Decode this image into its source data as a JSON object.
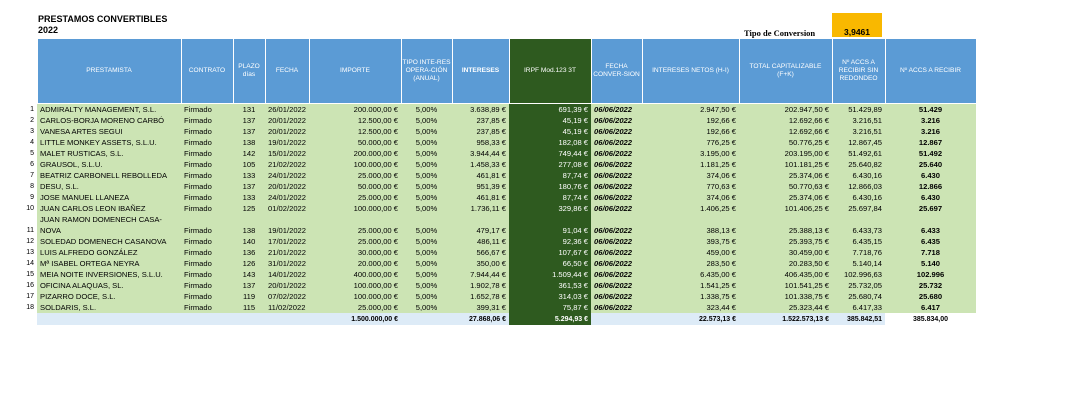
{
  "title": "PRESTAMOS CONVERTIBLES",
  "year": "2022",
  "conversion": {
    "label": "Tipo de Conversion",
    "value": "3,9461"
  },
  "headers": {
    "prestamista": "PRESTAMISTA",
    "contrato": "CONTRATO",
    "plazo": "PLAZO días",
    "fecha": "FECHA",
    "importe": "IMPORTE",
    "tipo": "TIPO INTE-RES OPERA-CIÓN (ANUAL)",
    "intereses": "INTERESES",
    "irpf": "IRPF Mod.123 3T",
    "fecha_conv": "FECHA CONVER-SION",
    "netos": "INTERESES NETOS   (H-I)",
    "total_cap": "TOTAL CAPITALIZABLE (F+K)",
    "acc_sin": "Nº ACCS A RECIBIR SIN REDONDEO",
    "acc": "Nº ACCS A RECIBIR"
  },
  "rows": [
    {
      "n": "1",
      "name": "ADMIRALTY MANAGEMENT, S.L.",
      "contrato": "Firmado",
      "plazo": "131",
      "fecha": "26/01/2022",
      "importe": "200.000,00 €",
      "tipo": "5,00%",
      "intereses": "3.638,89 €",
      "irpf": "691,39 €",
      "fecha_conv": "06/06/2022",
      "netos": "2.947,50 €",
      "total": "202.947,50 €",
      "acc_sin": "51.429,89",
      "acc": "51.429"
    },
    {
      "n": "2",
      "name": "CARLOS-BORJA MORENO CARBÓ",
      "contrato": "Firmado",
      "plazo": "137",
      "fecha": "20/01/2022",
      "importe": "12.500,00 €",
      "tipo": "5,00%",
      "intereses": "237,85 €",
      "irpf": "45,19 €",
      "fecha_conv": "06/06/2022",
      "netos": "192,66 €",
      "total": "12.692,66 €",
      "acc_sin": "3.216,51",
      "acc": "3.216"
    },
    {
      "n": "3",
      "name": "VANESA ARTES SEGUI",
      "contrato": "Firmado",
      "plazo": "137",
      "fecha": "20/01/2022",
      "importe": "12.500,00 €",
      "tipo": "5,00%",
      "intereses": "237,85 €",
      "irpf": "45,19 €",
      "fecha_conv": "06/06/2022",
      "netos": "192,66 €",
      "total": "12.692,66 €",
      "acc_sin": "3.216,51",
      "acc": "3.216"
    },
    {
      "n": "4",
      "name": "LITTLE MONKEY ASSETS, S.L.U.",
      "contrato": "Firmado",
      "plazo": "138",
      "fecha": "19/01/2022",
      "importe": "50.000,00 €",
      "tipo": "5,00%",
      "intereses": "958,33 €",
      "irpf": "182,08 €",
      "fecha_conv": "06/06/2022",
      "netos": "776,25 €",
      "total": "50.776,25 €",
      "acc_sin": "12.867,45",
      "acc": "12.867"
    },
    {
      "n": "5",
      "name": "MALET RUSTICAS, S.L.",
      "contrato": "Firmado",
      "plazo": "142",
      "fecha": "15/01/2022",
      "importe": "200.000,00 €",
      "tipo": "5,00%",
      "intereses": "3.944,44 €",
      "irpf": "749,44 €",
      "fecha_conv": "06/06/2022",
      "netos": "3.195,00 €",
      "total": "203.195,00 €",
      "acc_sin": "51.492,61",
      "acc": "51.492"
    },
    {
      "n": "6",
      "name": "GRAUSOL, S.L.U.",
      "contrato": "Firmado",
      "plazo": "105",
      "fecha": "21/02/2022",
      "importe": "100.000,00 €",
      "tipo": "5,00%",
      "intereses": "1.458,33 €",
      "irpf": "277,08 €",
      "fecha_conv": "06/06/2022",
      "netos": "1.181,25 €",
      "total": "101.181,25 €",
      "acc_sin": "25.640,82",
      "acc": "25.640"
    },
    {
      "n": "7",
      "name": "BEATRIZ CARBONELL REBOLLEDA",
      "contrato": "Firmado",
      "plazo": "133",
      "fecha": "24/01/2022",
      "importe": "25.000,00 €",
      "tipo": "5,00%",
      "intereses": "461,81 €",
      "irpf": "87,74 €",
      "fecha_conv": "06/06/2022",
      "netos": "374,06 €",
      "total": "25.374,06 €",
      "acc_sin": "6.430,16",
      "acc": "6.430"
    },
    {
      "n": "8",
      "name": "DESU, S.L.",
      "contrato": "Firmado",
      "plazo": "137",
      "fecha": "20/01/2022",
      "importe": "50.000,00 €",
      "tipo": "5,00%",
      "intereses": "951,39 €",
      "irpf": "180,76 €",
      "fecha_conv": "06/06/2022",
      "netos": "770,63 €",
      "total": "50.770,63 €",
      "acc_sin": "12.866,03",
      "acc": "12.866"
    },
    {
      "n": "9",
      "name": "JOSE MANUEL LLANEZA",
      "contrato": "Firmado",
      "plazo": "133",
      "fecha": "24/01/2022",
      "importe": "25.000,00 €",
      "tipo": "5,00%",
      "intereses": "461,81 €",
      "irpf": "87,74 €",
      "fecha_conv": "06/06/2022",
      "netos": "374,06 €",
      "total": "25.374,06 €",
      "acc_sin": "6.430,16",
      "acc": "6.430"
    },
    {
      "n": "10",
      "name": "JUAN CARLOS LEON IBAÑEZ",
      "contrato": "Firmado",
      "plazo": "125",
      "fecha": "01/02/2022",
      "importe": "100.000,00 €",
      "tipo": "5,00%",
      "intereses": "1.736,11 €",
      "irpf": "329,86 €",
      "fecha_conv": "06/06/2022",
      "netos": "1.406,25 €",
      "total": "101.406,25 €",
      "acc_sin": "25.697,84",
      "acc": "25.697"
    },
    {
      "n": "11",
      "name": "JUAN RAMON DOMENECH CASA-NOVA",
      "contrato": "Firmado",
      "plazo": "138",
      "fecha": "19/01/2022",
      "importe": "25.000,00 €",
      "tipo": "5,00%",
      "intereses": "479,17 €",
      "irpf": "91,04 €",
      "fecha_conv": "06/06/2022",
      "netos": "388,13 €",
      "total": "25.388,13 €",
      "acc_sin": "6.433,73",
      "acc": "6.433"
    },
    {
      "n": "12",
      "name": "SOLEDAD DOMENECH CASANOVA",
      "contrato": "Firmado",
      "plazo": "140",
      "fecha": "17/01/2022",
      "importe": "25.000,00 €",
      "tipo": "5,00%",
      "intereses": "486,11 €",
      "irpf": "92,36 €",
      "fecha_conv": "06/06/2022",
      "netos": "393,75 €",
      "total": "25.393,75 €",
      "acc_sin": "6.435,15",
      "acc": "6.435"
    },
    {
      "n": "13",
      "name": "LUIS ALFREDO GONZÁLEZ",
      "contrato": "Firmado",
      "plazo": "136",
      "fecha": "21/01/2022",
      "importe": "30.000,00 €",
      "tipo": "5,00%",
      "intereses": "566,67 €",
      "irpf": "107,67 €",
      "fecha_conv": "06/06/2022",
      "netos": "459,00 €",
      "total": "30.459,00 €",
      "acc_sin": "7.718,76",
      "acc": "7.718"
    },
    {
      "n": "14",
      "name": "Mª ISABEL ORTEGA NEYRA",
      "contrato": "Firmado",
      "plazo": "126",
      "fecha": "31/01/2022",
      "importe": "20.000,00 €",
      "tipo": "5,00%",
      "intereses": "350,00 €",
      "irpf": "66,50 €",
      "fecha_conv": "06/06/2022",
      "netos": "283,50 €",
      "total": "20.283,50 €",
      "acc_sin": "5.140,14",
      "acc": "5.140"
    },
    {
      "n": "15",
      "name": "MEIA NOITE INVERSIONES, S.L.U.",
      "contrato": "Firmado",
      "plazo": "143",
      "fecha": "14/01/2022",
      "importe": "400.000,00 €",
      "tipo": "5,00%",
      "intereses": "7.944,44 €",
      "irpf": "1.509,44 €",
      "fecha_conv": "06/06/2022",
      "netos": "6.435,00 €",
      "total": "406.435,00 €",
      "acc_sin": "102.996,63",
      "acc": "102.996"
    },
    {
      "n": "16",
      "name": "OFICINA ALAQUAS, SL.",
      "contrato": "Firmado",
      "plazo": "137",
      "fecha": "20/01/2022",
      "importe": "100.000,00 €",
      "tipo": "5,00%",
      "intereses": "1.902,78 €",
      "irpf": "361,53 €",
      "fecha_conv": "06/06/2022",
      "netos": "1.541,25 €",
      "total": "101.541,25 €",
      "acc_sin": "25.732,05",
      "acc": "25.732"
    },
    {
      "n": "17",
      "name": "PIZARRO DOCE, S.L.",
      "contrato": "Firmado",
      "plazo": "119",
      "fecha": "07/02/2022",
      "importe": "100.000,00 €",
      "tipo": "5,00%",
      "intereses": "1.652,78 €",
      "irpf": "314,03 €",
      "fecha_conv": "06/06/2022",
      "netos": "1.338,75 €",
      "total": "101.338,75 €",
      "acc_sin": "25.680,74",
      "acc": "25.680"
    },
    {
      "n": "18",
      "name": "SOLDARIS, S.L.",
      "contrato": "Firmado",
      "plazo": "115",
      "fecha": "11/02/2022",
      "importe": "25.000,00 €",
      "tipo": "5,00%",
      "intereses": "399,31 €",
      "irpf": "75,87 €",
      "fecha_conv": "06/06/2022",
      "netos": "323,44 €",
      "total": "25.323,44 €",
      "acc_sin": "6.417,33",
      "acc": "6.417"
    }
  ],
  "totals": {
    "importe": "1.500.000,00 €",
    "intereses": "27.868,06 €",
    "irpf": "5.294,93 €",
    "netos": "22.573,13 €",
    "total": "1.522.573,13 €",
    "acc_sin": "385.842,51",
    "acc": "385.834,00"
  }
}
